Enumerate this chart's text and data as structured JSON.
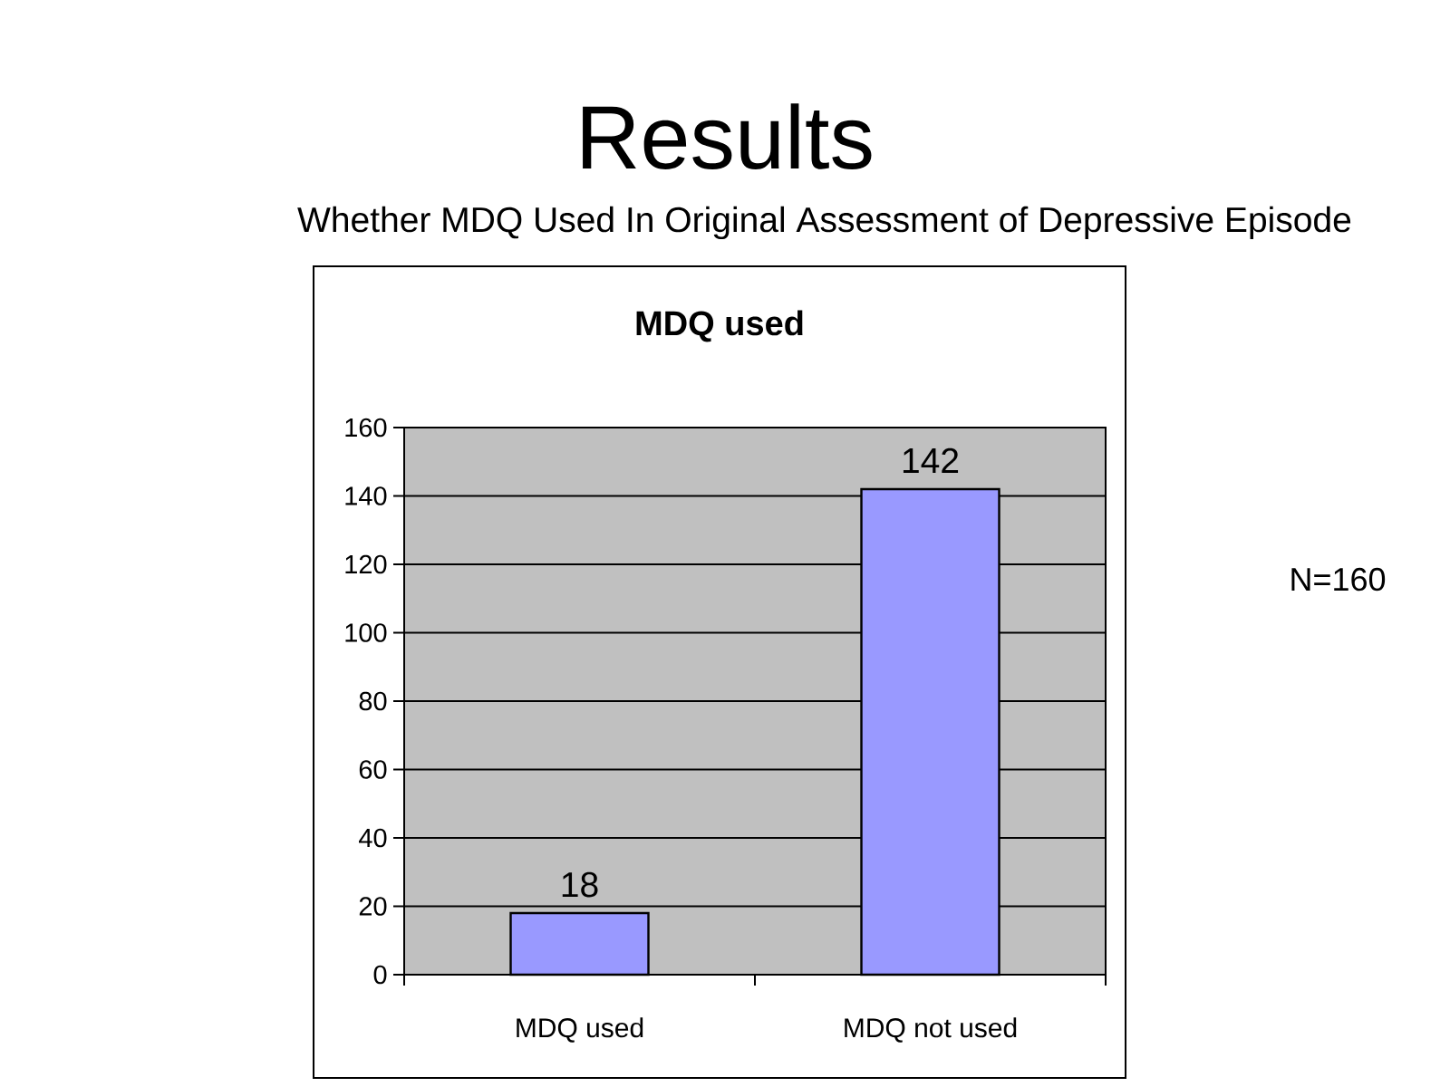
{
  "chart_data": {
    "type": "bar",
    "title": "Results",
    "subtitle": "Whether MDQ Used In Original Assessment of Depressive Episode",
    "annotations": [
      "MDQ used",
      "N=160"
    ],
    "categories": [
      "MDQ used",
      "MDQ not used"
    ],
    "values": [
      18,
      142
    ],
    "color": "#9999ff",
    "ylim": [
      0,
      160
    ],
    "yticks": [
      0,
      20,
      40,
      60,
      80,
      100,
      120,
      140,
      160
    ],
    "grid": "y",
    "data_labels": true
  }
}
